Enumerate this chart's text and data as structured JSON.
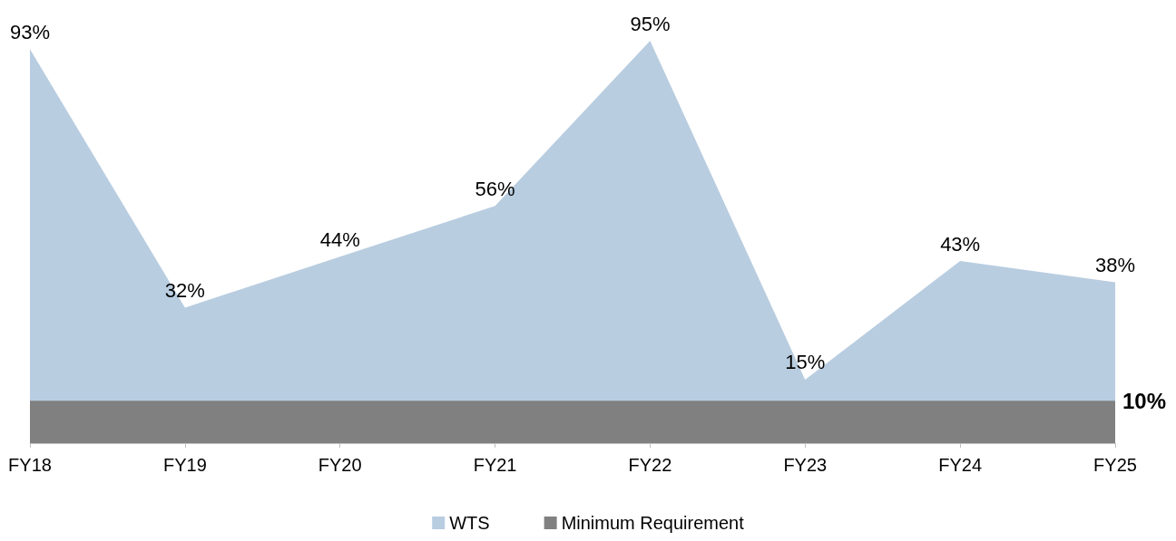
{
  "chart_data": {
    "type": "area",
    "categories": [
      "FY18",
      "FY19",
      "FY20",
      "FY21",
      "FY22",
      "FY23",
      "FY24",
      "FY25"
    ],
    "legend": "bottom",
    "grid": false,
    "marker": "none",
    "series": [
      {
        "name": "WTS",
        "color": "#b9cde0",
        "values": [
          93,
          32,
          44,
          56,
          95,
          15,
          43,
          38
        ],
        "value_labels": [
          "93%",
          "32%",
          "44%",
          "56%",
          "95%",
          "15%",
          "43%",
          "38%"
        ]
      },
      {
        "name": "Minimum Requirement",
        "color": "#808080",
        "values": [
          10,
          10,
          10,
          10,
          10,
          10,
          10,
          10
        ],
        "value_labels": [
          null,
          null,
          null,
          null,
          null,
          null,
          null,
          "10%"
        ]
      }
    ]
  }
}
